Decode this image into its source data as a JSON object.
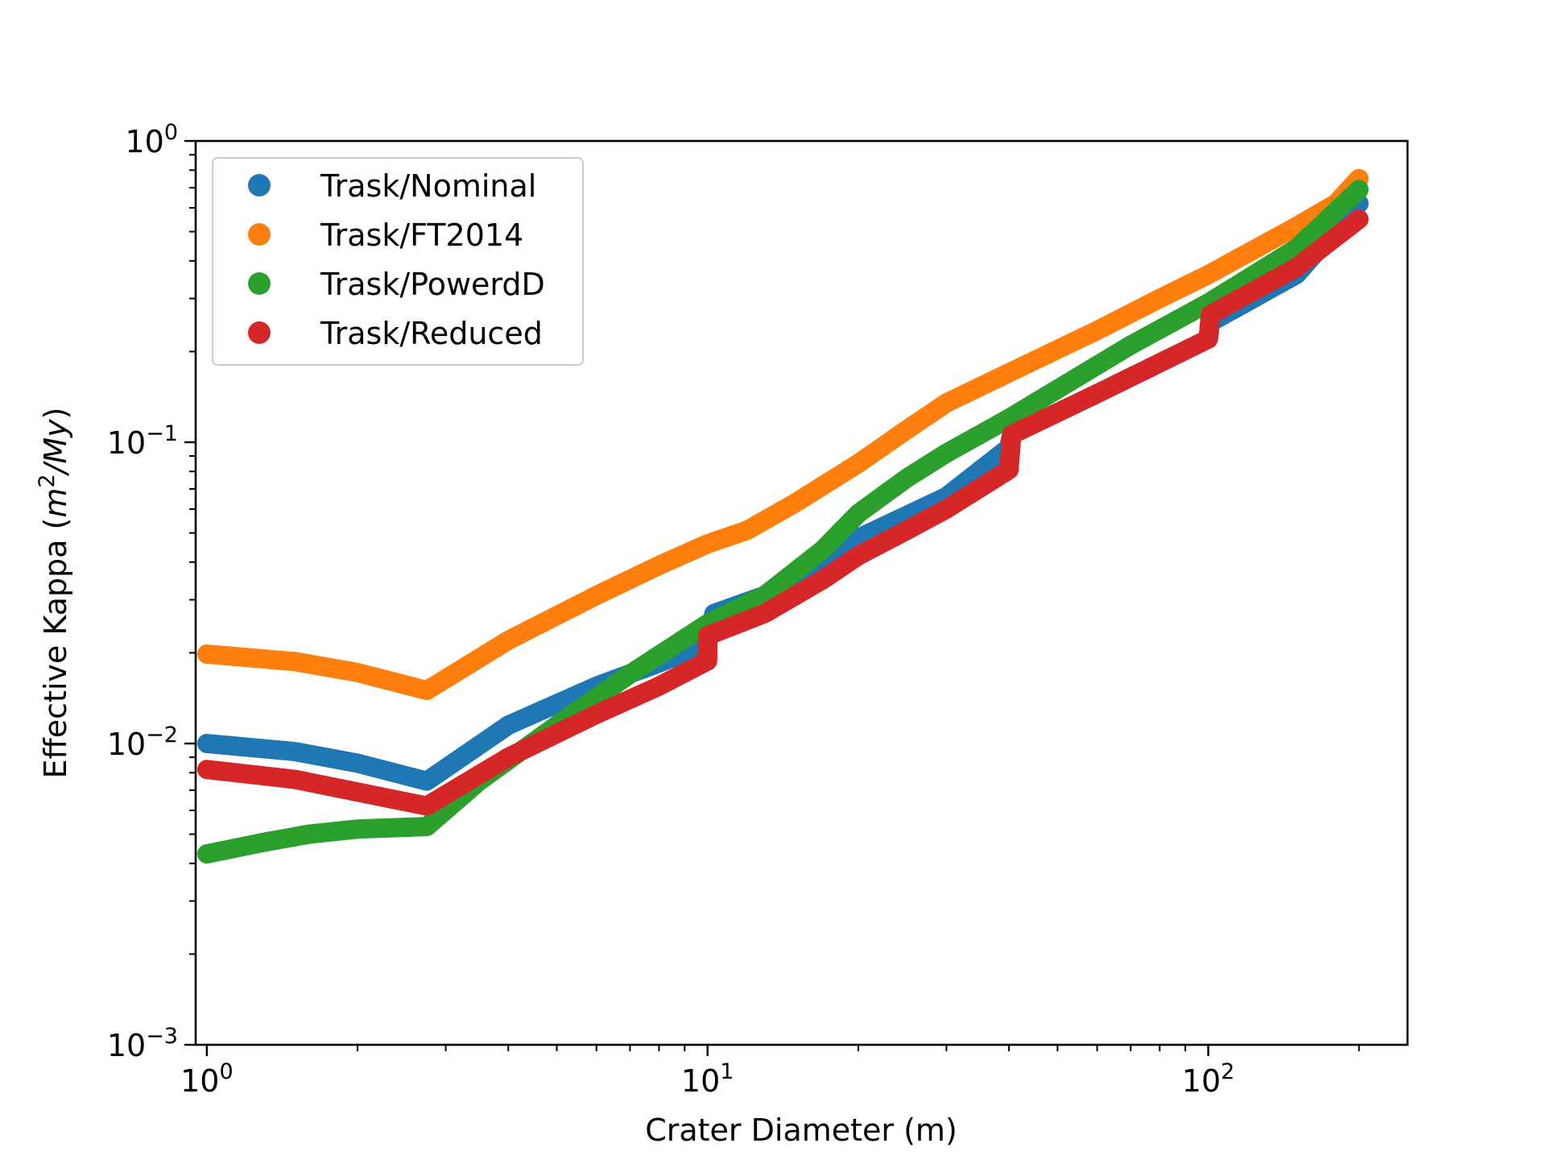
{
  "chart_data": {
    "type": "scatter",
    "xlabel": "Crater Diameter (m)",
    "ylabel": {
      "prefix": "Effective Kappa (",
      "m": "m",
      "m_exp": "2",
      "rest": "/My",
      "suffix": ")"
    },
    "xscale": "log",
    "yscale": "log",
    "xlim": [
      0.95,
      250
    ],
    "ylim": [
      0.001,
      1.0
    ],
    "grid": false,
    "legend_position": "upper-left",
    "x_ticks": [
      {
        "value": 1,
        "base": "10",
        "exp": "0"
      },
      {
        "value": 10,
        "base": "10",
        "exp": "1"
      },
      {
        "value": 100,
        "base": "10",
        "exp": "2"
      }
    ],
    "y_ticks": [
      {
        "value": 0.001,
        "base": "10",
        "exp": "−3"
      },
      {
        "value": 0.01,
        "base": "10",
        "exp": "−2"
      },
      {
        "value": 0.1,
        "base": "10",
        "exp": "−1"
      },
      {
        "value": 1.0,
        "base": "10",
        "exp": "0"
      }
    ],
    "series": [
      {
        "name": "Trask/Nominal",
        "color": "#1f77b4",
        "points": [
          [
            1,
            0.01
          ],
          [
            1.5,
            0.0094
          ],
          [
            2,
            0.0086
          ],
          [
            2.75,
            0.0075
          ],
          [
            4,
            0.0115
          ],
          [
            6,
            0.0155
          ],
          [
            8,
            0.0185
          ],
          [
            10,
            0.0215
          ],
          [
            10.3,
            0.027
          ],
          [
            13,
            0.031
          ],
          [
            20,
            0.048
          ],
          [
            30,
            0.066
          ],
          [
            40,
            0.096
          ],
          [
            40.5,
            0.106
          ],
          [
            60,
            0.145
          ],
          [
            100,
            0.22
          ],
          [
            101,
            0.25
          ],
          [
            150,
            0.36
          ],
          [
            200,
            0.62
          ]
        ]
      },
      {
        "name": "Trask/FT2014",
        "color": "#ff7f0e",
        "points": [
          [
            1,
            0.0198
          ],
          [
            1.5,
            0.0187
          ],
          [
            2,
            0.0172
          ],
          [
            2.75,
            0.015
          ],
          [
            4,
            0.022
          ],
          [
            6,
            0.031
          ],
          [
            8,
            0.039
          ],
          [
            10,
            0.046
          ],
          [
            12,
            0.051
          ],
          [
            15,
            0.063
          ],
          [
            20,
            0.085
          ],
          [
            25,
            0.11
          ],
          [
            30,
            0.135
          ],
          [
            40,
            0.17
          ],
          [
            60,
            0.235
          ],
          [
            80,
            0.3
          ],
          [
            100,
            0.36
          ],
          [
            150,
            0.52
          ],
          [
            180,
            0.62
          ],
          [
            200,
            0.75
          ]
        ]
      },
      {
        "name": "Trask/PowerdD",
        "color": "#2ca02c",
        "points": [
          [
            1,
            0.0043
          ],
          [
            1.3,
            0.0047
          ],
          [
            1.6,
            0.005
          ],
          [
            2,
            0.0052
          ],
          [
            2.75,
            0.0053
          ],
          [
            3.5,
            0.0075
          ],
          [
            5,
            0.0115
          ],
          [
            7,
            0.017
          ],
          [
            10,
            0.025
          ],
          [
            13,
            0.031
          ],
          [
            17,
            0.044
          ],
          [
            20,
            0.058
          ],
          [
            25,
            0.076
          ],
          [
            30,
            0.092
          ],
          [
            40,
            0.12
          ],
          [
            50,
            0.15
          ],
          [
            70,
            0.21
          ],
          [
            100,
            0.29
          ],
          [
            150,
            0.44
          ],
          [
            200,
            0.69
          ]
        ]
      },
      {
        "name": "Trask/Reduced",
        "color": "#d62728",
        "points": [
          [
            1,
            0.0082
          ],
          [
            1.5,
            0.0076
          ],
          [
            2,
            0.0069
          ],
          [
            2.75,
            0.0062
          ],
          [
            4,
            0.009
          ],
          [
            6,
            0.0125
          ],
          [
            8,
            0.0155
          ],
          [
            10,
            0.0188
          ],
          [
            10.01,
            0.0228
          ],
          [
            13,
            0.027
          ],
          [
            17,
            0.035
          ],
          [
            20,
            0.042
          ],
          [
            25,
            0.051
          ],
          [
            30,
            0.06
          ],
          [
            40,
            0.081
          ],
          [
            40.5,
            0.106
          ],
          [
            60,
            0.145
          ],
          [
            100,
            0.22
          ],
          [
            101,
            0.265
          ],
          [
            150,
            0.38
          ],
          [
            200,
            0.55
          ]
        ]
      }
    ]
  }
}
